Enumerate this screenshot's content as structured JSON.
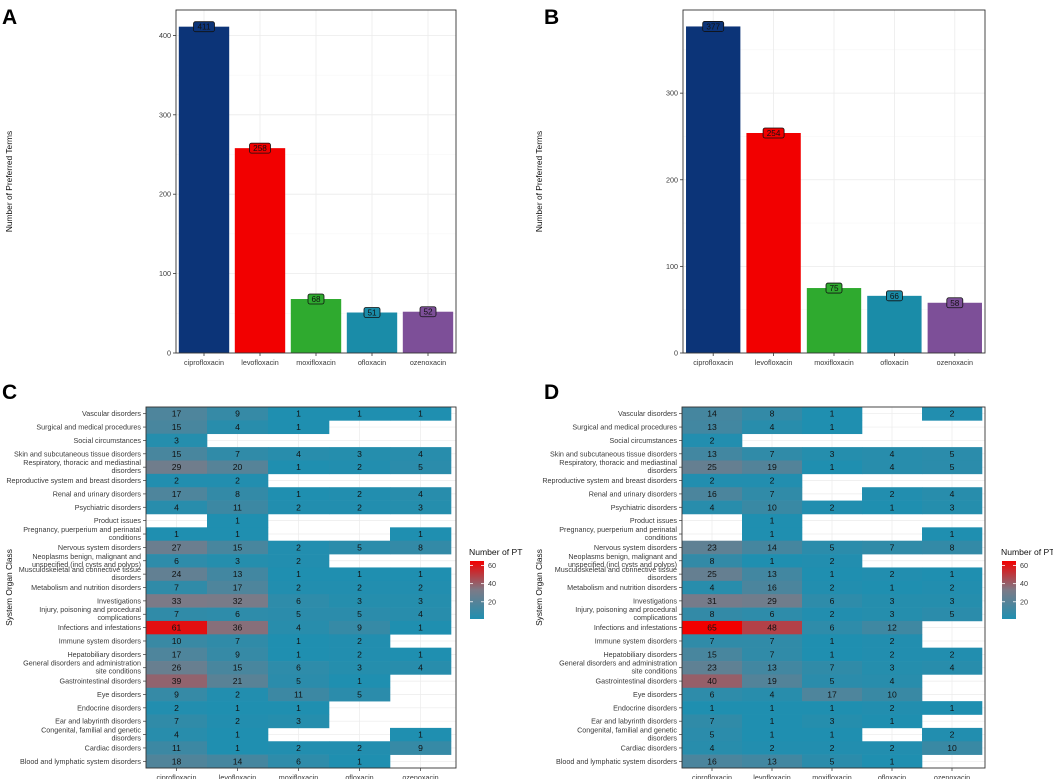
{
  "panel_letters": [
    "A",
    "B",
    "C",
    "D"
  ],
  "colors": {
    "ciprofloxacin": "#0c3478",
    "levofloxacin": "#f20000",
    "moxifloxacin": "#2faa2f",
    "ofloxacin": "#1a8ca8",
    "ozenoxacin": "#7d4f98",
    "heat_low": "#1f8fb0",
    "heat_mid": "#7c7a87",
    "heat_high": "#f20000",
    "grid": "#ebebeb",
    "frame": "#333333"
  },
  "chart_data": [
    {
      "panel": "A",
      "type": "bar",
      "categories": [
        "ciprofloxacin",
        "levofloxacin",
        "moxifloxacin",
        "ofloxacin",
        "ozenoxacin"
      ],
      "values": [
        411,
        258,
        68,
        51,
        52
      ],
      "value_labels": [
        "411",
        "258",
        "68",
        "51",
        "52"
      ],
      "ylabel": "Number of Preferred Terms",
      "xlabel": "",
      "ylim": [
        0,
        432
      ],
      "yticks": [
        0,
        100,
        200,
        300,
        400
      ],
      "ytick_labels": [
        "0",
        "100",
        "200",
        "300",
        "400"
      ],
      "grid": true
    },
    {
      "panel": "B",
      "type": "bar",
      "categories": [
        "ciprofloxacin",
        "levofloxacin",
        "moxifloxacin",
        "ofloxacin",
        "ozenoxacin"
      ],
      "values": [
        377,
        254,
        75,
        66,
        58
      ],
      "value_labels": [
        "377",
        "254",
        "75",
        "66",
        "58"
      ],
      "ylabel": "Number of Preferred Terms",
      "xlabel": "",
      "ylim": [
        0,
        396
      ],
      "yticks": [
        0,
        100,
        200,
        300
      ],
      "ytick_labels": [
        "0",
        "100",
        "200",
        "300"
      ],
      "grid": true
    },
    {
      "panel": "C",
      "type": "heatmap",
      "columns": [
        "ciprofloxacin",
        "levofloxacin",
        "moxifloxacin",
        "ofloxacin",
        "ozenoxacin"
      ],
      "ylabel": "System Organ Class",
      "legend_title": "Number of PT",
      "legend_ticks": [
        "20",
        "40",
        "60"
      ],
      "legend_tick_values": [
        20,
        40,
        60
      ],
      "color_range": [
        1,
        65
      ],
      "rows": [
        {
          "label": [
            "Vascular disorders"
          ],
          "values": [
            17,
            9,
            1,
            1,
            1
          ]
        },
        {
          "label": [
            "Surgical and medical procedures"
          ],
          "values": [
            15,
            4,
            1,
            null,
            null
          ]
        },
        {
          "label": [
            "Social circumstances"
          ],
          "values": [
            3,
            null,
            null,
            null,
            null
          ]
        },
        {
          "label": [
            "Skin and subcutaneous tissue disorders"
          ],
          "values": [
            15,
            7,
            4,
            3,
            4
          ]
        },
        {
          "label": [
            "Respiratory, thoracic and mediastinal",
            "disorders"
          ],
          "values": [
            29,
            20,
            1,
            2,
            5
          ]
        },
        {
          "label": [
            "Reproductive system and breast disorders"
          ],
          "values": [
            2,
            2,
            null,
            null,
            null
          ]
        },
        {
          "label": [
            "Renal and urinary disorders"
          ],
          "values": [
            17,
            8,
            1,
            2,
            4
          ]
        },
        {
          "label": [
            "Psychiatric disorders"
          ],
          "values": [
            4,
            11,
            2,
            2,
            3
          ]
        },
        {
          "label": [
            "Product issues"
          ],
          "values": [
            null,
            1,
            null,
            null,
            null
          ]
        },
        {
          "label": [
            "Pregnancy, puerperium and perinatal",
            "conditions"
          ],
          "values": [
            1,
            1,
            null,
            null,
            1
          ]
        },
        {
          "label": [
            "Nervous system disorders"
          ],
          "values": [
            27,
            15,
            2,
            5,
            8
          ]
        },
        {
          "label": [
            "Neoplasms benign, malignant and",
            "unspecified (incl cysts and polyps)"
          ],
          "values": [
            6,
            3,
            2,
            null,
            null
          ]
        },
        {
          "label": [
            "Musculoskeletal and connective tissue",
            "disorders"
          ],
          "values": [
            24,
            13,
            1,
            1,
            1
          ]
        },
        {
          "label": [
            "Metabolism and nutrition disorders"
          ],
          "values": [
            7,
            17,
            2,
            2,
            2
          ]
        },
        {
          "label": [
            "Investigations"
          ],
          "values": [
            33,
            32,
            6,
            3,
            3
          ]
        },
        {
          "label": [
            "Injury, poisoning and procedural",
            "complications"
          ],
          "values": [
            7,
            6,
            5,
            5,
            4
          ]
        },
        {
          "label": [
            "Infections and infestations"
          ],
          "values": [
            61,
            36,
            4,
            9,
            1
          ]
        },
        {
          "label": [
            "Immune system disorders"
          ],
          "values": [
            10,
            7,
            1,
            2,
            null
          ]
        },
        {
          "label": [
            "Hepatobiliary disorders"
          ],
          "values": [
            17,
            9,
            1,
            2,
            1
          ]
        },
        {
          "label": [
            "General disorders and administration",
            "site conditions"
          ],
          "values": [
            26,
            15,
            6,
            3,
            4
          ]
        },
        {
          "label": [
            "Gastrointestinal disorders"
          ],
          "values": [
            39,
            21,
            5,
            1,
            null
          ]
        },
        {
          "label": [
            "Eye disorders"
          ],
          "values": [
            9,
            2,
            11,
            5,
            null
          ]
        },
        {
          "label": [
            "Endocrine disorders"
          ],
          "values": [
            2,
            1,
            1,
            null,
            null
          ]
        },
        {
          "label": [
            "Ear and labyrinth disorders"
          ],
          "values": [
            7,
            2,
            3,
            null,
            null
          ]
        },
        {
          "label": [
            "Congenital, familial and genetic",
            "disorders"
          ],
          "values": [
            4,
            1,
            null,
            null,
            1
          ]
        },
        {
          "label": [
            "Cardiac disorders"
          ],
          "values": [
            11,
            1,
            2,
            2,
            9
          ]
        },
        {
          "label": [
            "Blood and lymphatic system disorders"
          ],
          "values": [
            18,
            14,
            6,
            1,
            null
          ]
        }
      ]
    },
    {
      "panel": "D",
      "type": "heatmap",
      "columns": [
        "ciprofloxacin",
        "levofloxacin",
        "moxifloxacin",
        "ofloxacin",
        "ozenoxacin"
      ],
      "ylabel": "System Organ Class",
      "legend_title": "Number of PT",
      "legend_ticks": [
        "20",
        "40",
        "60"
      ],
      "legend_tick_values": [
        20,
        40,
        60
      ],
      "color_range": [
        1,
        65
      ],
      "rows": [
        {
          "label": [
            "Vascular disorders"
          ],
          "values": [
            14,
            8,
            1,
            null,
            2
          ]
        },
        {
          "label": [
            "Surgical and medical procedures"
          ],
          "values": [
            13,
            4,
            1,
            null,
            null
          ]
        },
        {
          "label": [
            "Social circumstances"
          ],
          "values": [
            2,
            null,
            null,
            null,
            null
          ]
        },
        {
          "label": [
            "Skin and subcutaneous tissue disorders"
          ],
          "values": [
            13,
            7,
            3,
            4,
            5
          ]
        },
        {
          "label": [
            "Respiratory, thoracic and mediastinal",
            "disorders"
          ],
          "values": [
            25,
            19,
            1,
            4,
            5
          ]
        },
        {
          "label": [
            "Reproductive system and breast disorders"
          ],
          "values": [
            2,
            2,
            null,
            null,
            null
          ]
        },
        {
          "label": [
            "Renal and urinary disorders"
          ],
          "values": [
            16,
            7,
            null,
            2,
            4
          ]
        },
        {
          "label": [
            "Psychiatric disorders"
          ],
          "values": [
            4,
            10,
            2,
            1,
            3
          ]
        },
        {
          "label": [
            "Product issues"
          ],
          "values": [
            null,
            1,
            null,
            null,
            null
          ]
        },
        {
          "label": [
            "Pregnancy, puerperium and perinatal",
            "conditions"
          ],
          "values": [
            null,
            1,
            null,
            null,
            1
          ]
        },
        {
          "label": [
            "Nervous system disorders"
          ],
          "values": [
            23,
            14,
            5,
            7,
            8
          ]
        },
        {
          "label": [
            "Neoplasms benign, malignant and",
            "unspecified (incl cysts and polyps)"
          ],
          "values": [
            8,
            1,
            2,
            null,
            null
          ]
        },
        {
          "label": [
            "Musculoskeletal and connective tissue",
            "disorders"
          ],
          "values": [
            25,
            13,
            1,
            2,
            1
          ]
        },
        {
          "label": [
            "Metabolism and nutrition disorders"
          ],
          "values": [
            4,
            16,
            2,
            1,
            2
          ]
        },
        {
          "label": [
            "Investigations"
          ],
          "values": [
            31,
            29,
            6,
            3,
            3
          ]
        },
        {
          "label": [
            "Injury, poisoning and procedural",
            "complications"
          ],
          "values": [
            8,
            6,
            2,
            3,
            5
          ]
        },
        {
          "label": [
            "Infections and infestations"
          ],
          "values": [
            65,
            48,
            6,
            12,
            null
          ]
        },
        {
          "label": [
            "Immune system disorders"
          ],
          "values": [
            7,
            7,
            1,
            2,
            null
          ]
        },
        {
          "label": [
            "Hepatobiliary disorders"
          ],
          "values": [
            15,
            7,
            1,
            2,
            2
          ]
        },
        {
          "label": [
            "General disorders and administration",
            "site conditions"
          ],
          "values": [
            23,
            13,
            7,
            3,
            4
          ]
        },
        {
          "label": [
            "Gastrointestinal disorders"
          ],
          "values": [
            40,
            19,
            5,
            4,
            null
          ]
        },
        {
          "label": [
            "Eye disorders"
          ],
          "values": [
            6,
            4,
            17,
            10,
            null
          ]
        },
        {
          "label": [
            "Endocrine disorders"
          ],
          "values": [
            1,
            1,
            1,
            2,
            1
          ]
        },
        {
          "label": [
            "Ear and labyrinth disorders"
          ],
          "values": [
            7,
            1,
            3,
            1,
            null
          ]
        },
        {
          "label": [
            "Congenital, familial and genetic",
            "disorders"
          ],
          "values": [
            5,
            1,
            1,
            null,
            2
          ]
        },
        {
          "label": [
            "Cardiac disorders"
          ],
          "values": [
            4,
            2,
            2,
            2,
            10
          ]
        },
        {
          "label": [
            "Blood and lymphatic system disorders"
          ],
          "values": [
            16,
            13,
            5,
            1,
            null
          ]
        }
      ]
    }
  ]
}
